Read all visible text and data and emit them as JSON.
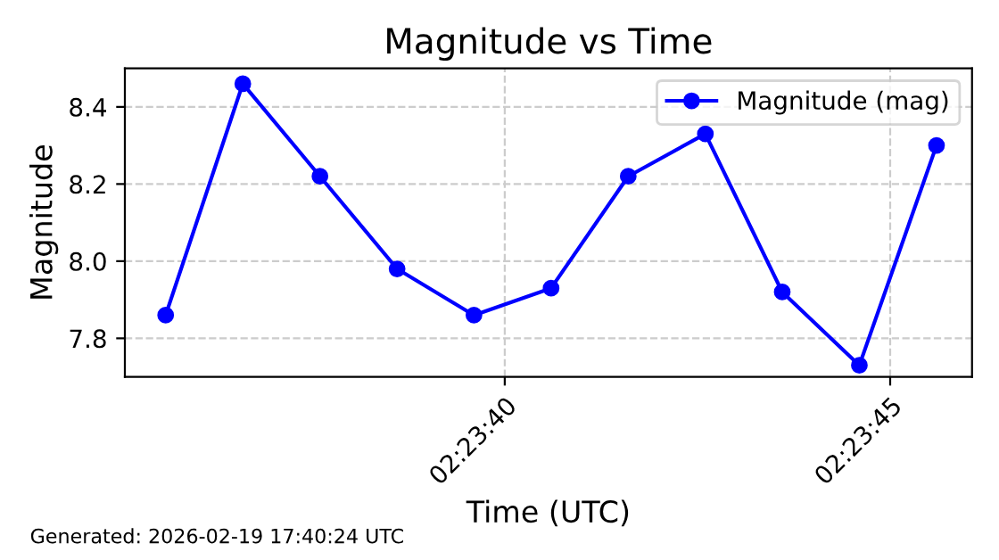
{
  "chart_data": {
    "type": "line",
    "title": "Magnitude vs Time",
    "xlabel": "Time (UTC)",
    "ylabel": "Magnitude",
    "x": [
      2.393222,
      2.3935,
      2.393778,
      2.394056,
      2.394333,
      2.394611,
      2.394889,
      2.395167,
      2.395444,
      2.395722,
      2.396
    ],
    "series": [
      {
        "name": "Magnitude (mag)",
        "color": "#0000ff",
        "values": [
          7.86,
          8.46,
          8.22,
          7.98,
          7.86,
          7.93,
          8.22,
          8.33,
          7.92,
          7.73,
          8.3
        ]
      }
    ],
    "xlim": [
      2.393075,
      2.396128
    ],
    "xticks": [
      {
        "value": 2.394444,
        "label": "02:23:40"
      },
      {
        "value": 2.395833,
        "label": "02:23:45"
      }
    ],
    "ylim": [
      7.7,
      8.5
    ],
    "yticks": [
      {
        "value": 7.8,
        "label": "7.8"
      },
      {
        "value": 8.0,
        "label": "8.0"
      },
      {
        "value": 8.2,
        "label": "8.2"
      },
      {
        "value": 8.4,
        "label": "8.4"
      }
    ],
    "grid": true,
    "legend": "top right",
    "marker": "circle",
    "line_style": "solid",
    "annotations": [
      "Generated: 2026-02-19 17:40:24 UTC"
    ]
  }
}
